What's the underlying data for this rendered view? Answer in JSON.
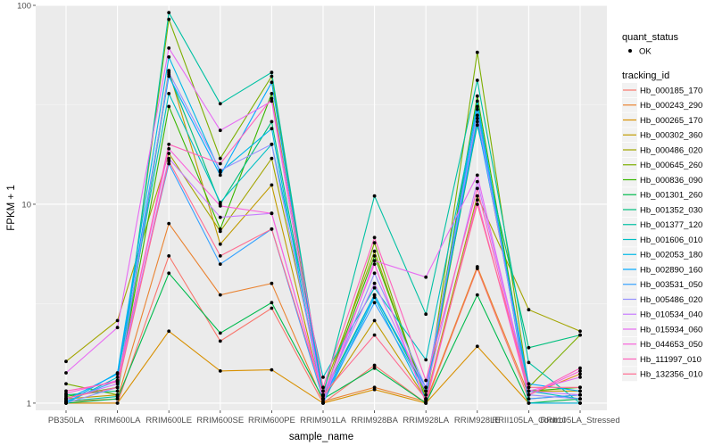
{
  "chart_data": {
    "type": "line",
    "title": "",
    "xlabel": "sample_name",
    "ylabel": "FPKM + 1",
    "y_scale": "log10",
    "ylim": [
      0.92,
      100
    ],
    "yticks": [
      1,
      10,
      100
    ],
    "ytick_labels": [
      "1",
      "10",
      "100"
    ],
    "grid": true,
    "categories": [
      "PB350LA",
      "RRIM600LA",
      "RRIM600LE",
      "RRIM600SE",
      "RRIM600PE",
      "RRIM901LA",
      "RRIM928BA",
      "RRIM928LA",
      "RRIM928LE",
      "RRII105LA_Control",
      "RRII105LA_Stressed"
    ],
    "legend_position": "right",
    "point_legend": {
      "title": "quant_status",
      "items": [
        "OK"
      ]
    },
    "color_legend_title": "tracking_id",
    "series": [
      {
        "name": "Hb_000185_170",
        "color": "#F8766D",
        "values": [
          1.0,
          1.0,
          5.5,
          2.05,
          3.0,
          1.0,
          1.55,
          1.0,
          4.75,
          1.05,
          1.1
        ]
      },
      {
        "name": "Hb_000243_290",
        "color": "#EA8331",
        "values": [
          1.02,
          1.05,
          8.0,
          3.5,
          4.0,
          1.02,
          1.2,
          1.02,
          4.85,
          1.1,
          1.4
        ]
      },
      {
        "name": "Hb_000265_170",
        "color": "#D89000",
        "values": [
          1.0,
          1.0,
          2.3,
          1.45,
          1.47,
          1.0,
          1.17,
          1.0,
          1.93,
          1.0,
          1.0
        ]
      },
      {
        "name": "Hb_000302_360",
        "color": "#C09B00",
        "values": [
          1.05,
          1.1,
          47.0,
          6.3,
          12.5,
          1.05,
          2.6,
          1.05,
          27.0,
          1.15,
          1.15
        ]
      },
      {
        "name": "Hb_000486_020",
        "color": "#A3A500",
        "values": [
          1.62,
          2.6,
          18.0,
          7.3,
          17.0,
          1.15,
          5.8,
          1.05,
          11.0,
          2.95,
          2.3
        ]
      },
      {
        "name": "Hb_000645_260",
        "color": "#7CAE00",
        "values": [
          1.25,
          1.1,
          85.0,
          17.0,
          44.0,
          1.05,
          6.4,
          1.03,
          58.0,
          1.2,
          2.2
        ]
      },
      {
        "name": "Hb_000836_090",
        "color": "#39B600",
        "values": [
          1.08,
          1.2,
          31.0,
          7.5,
          36.0,
          1.08,
          5.5,
          1.1,
          35.0,
          1.15,
          1.2
        ]
      },
      {
        "name": "Hb_001301_260",
        "color": "#00BB4E",
        "values": [
          1.0,
          1.05,
          4.5,
          2.25,
          3.2,
          1.05,
          1.5,
          1.0,
          3.5,
          1.0,
          1.05
        ]
      },
      {
        "name": "Hb_001352_030",
        "color": "#00BF7D",
        "values": [
          1.1,
          1.15,
          45.0,
          10.0,
          26.0,
          1.1,
          3.5,
          1.15,
          25.0,
          1.9,
          2.2
        ]
      },
      {
        "name": "Hb_001377_120",
        "color": "#00C1A3",
        "values": [
          1.02,
          1.08,
          92.0,
          32.0,
          46.0,
          1.1,
          11.0,
          2.8,
          42.0,
          1.6,
          1.0
        ]
      },
      {
        "name": "Hb_001606_010",
        "color": "#00BFC4",
        "values": [
          1.0,
          1.35,
          36.0,
          10.2,
          20.0,
          1.35,
          3.8,
          1.65,
          31.0,
          1.15,
          1.05
        ]
      },
      {
        "name": "Hb_002053_180",
        "color": "#00B8E7",
        "values": [
          1.0,
          1.42,
          55.0,
          14.5,
          24.0,
          1.0,
          3.4,
          1.05,
          33.0,
          1.0,
          1.0
        ]
      },
      {
        "name": "Hb_002890_160",
        "color": "#00A9FF",
        "values": [
          1.04,
          1.4,
          44.0,
          14.0,
          41.0,
          1.05,
          3.5,
          1.2,
          26.0,
          1.25,
          1.15
        ]
      },
      {
        "name": "Hb_003531_050",
        "color": "#35A2FF",
        "values": [
          1.02,
          1.3,
          16.0,
          5.0,
          7.5,
          1.05,
          3.2,
          1.15,
          30.0,
          1.05,
          1.1
        ]
      },
      {
        "name": "Hb_005486_020",
        "color": "#9590FF",
        "values": [
          1.0,
          1.2,
          46.0,
          14.8,
          20.0,
          1.05,
          4.5,
          1.2,
          28.0,
          1.1,
          1.05
        ]
      },
      {
        "name": "Hb_010534_040",
        "color": "#C77CFF",
        "values": [
          1.05,
          1.25,
          17.0,
          8.6,
          9.0,
          1.1,
          4.0,
          1.15,
          13.0,
          1.15,
          1.1
        ]
      },
      {
        "name": "Hb_015934_060",
        "color": "#E76BF3",
        "values": [
          1.42,
          2.4,
          61.0,
          23.5,
          33.0,
          1.0,
          5.2,
          4.3,
          14.0,
          1.15,
          1.35
        ]
      },
      {
        "name": "Hb_044653_050",
        "color": "#FA62DB",
        "values": [
          1.12,
          1.3,
          19.0,
          9.8,
          9.0,
          1.1,
          5.0,
          1.0,
          10.5,
          1.1,
          1.45
        ]
      },
      {
        "name": "Hb_111997_010",
        "color": "#FF62BC",
        "values": [
          1.15,
          1.28,
          20.0,
          16.0,
          34.0,
          1.2,
          6.8,
          1.3,
          12.0,
          1.1,
          1.5
        ]
      },
      {
        "name": "Hb_132356_010",
        "color": "#FF6C91",
        "values": [
          1.06,
          1.2,
          16.5,
          5.5,
          7.5,
          1.1,
          2.2,
          1.05,
          10.0,
          1.2,
          1.2
        ]
      }
    ]
  }
}
